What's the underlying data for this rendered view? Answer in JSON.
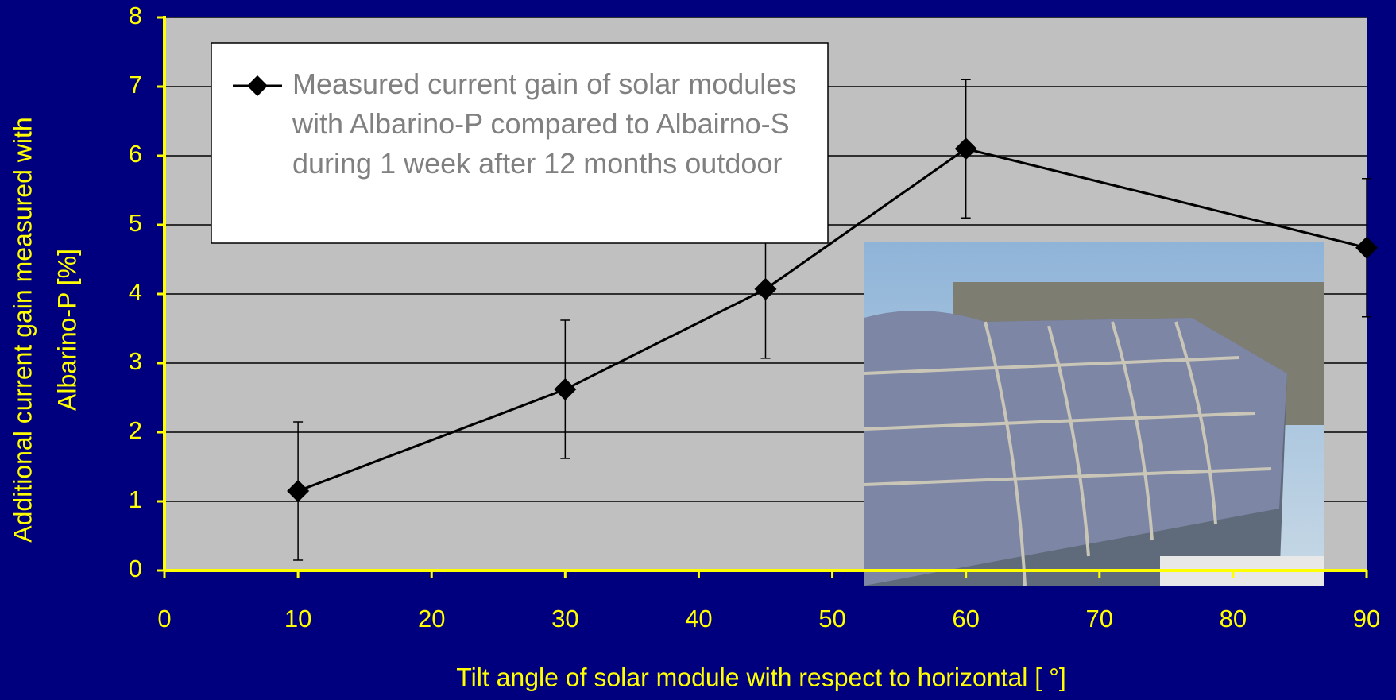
{
  "chart_data": {
    "type": "line",
    "xlabel": "Tilt angle of solar module with respect to horizontal [ °]",
    "ylabel": [
      "Additional current gain measured with",
      "Albarino-P [%]"
    ],
    "x": [
      10,
      30,
      45,
      60,
      90
    ],
    "series": [
      {
        "name": "Measured current gain of solar modules with Albarino-P compared to Albairno-S during 1 week after 12 months outdoor",
        "color": "#000000",
        "values": [
          1.15,
          2.62,
          4.07,
          6.1,
          4.67
        ],
        "errors": [
          1,
          1,
          1,
          1,
          1
        ]
      }
    ],
    "xlim": [
      0,
      90
    ],
    "xticks": [
      0,
      10,
      20,
      30,
      40,
      50,
      60,
      70,
      80,
      90
    ],
    "ylim": [
      0,
      8
    ],
    "yticks": [
      0,
      1,
      2,
      3,
      4,
      5,
      6,
      7,
      8
    ],
    "grid": true,
    "legend": "upper left"
  }
}
